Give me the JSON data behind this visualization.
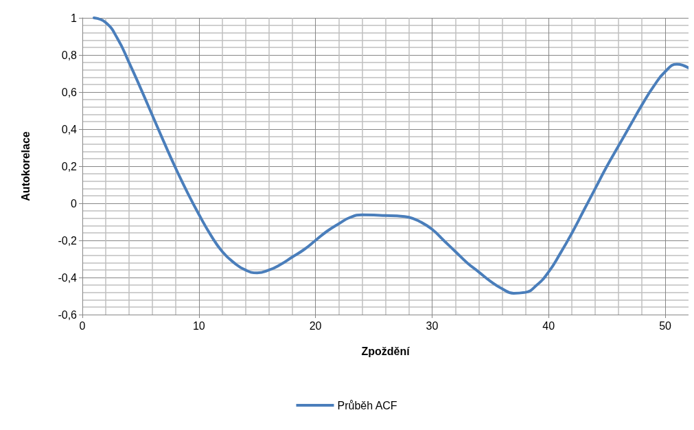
{
  "chart_data": {
    "type": "line",
    "xlabel": "Zpoždění",
    "ylabel": "Autokorelace",
    "xlim": [
      0,
      52
    ],
    "xticks": [
      0,
      10,
      20,
      30,
      40,
      50
    ],
    "ylim": [
      -0.6,
      1
    ],
    "yticks": [
      {
        "value": -0.6,
        "label": "-0,6"
      },
      {
        "value": -0.4,
        "label": "-0,4"
      },
      {
        "value": -0.2,
        "label": "-0,2"
      },
      0,
      {
        "value": 0.2,
        "label": "0,2"
      },
      {
        "value": 0.4,
        "label": "0,4"
      },
      {
        "value": 0.6,
        "label": "0,6"
      },
      {
        "value": 0.8,
        "label": "0,8"
      },
      1
    ],
    "grid": true,
    "legend": "bottom",
    "marker": "none",
    "line_style": "solid",
    "x": [
      1,
      2,
      3,
      4,
      5,
      6,
      7,
      8,
      9,
      10,
      11,
      12,
      13,
      14,
      15,
      16,
      17,
      18,
      19,
      20,
      21,
      22,
      23,
      24,
      25,
      26,
      27,
      28,
      29,
      30,
      31,
      32,
      33,
      34,
      35,
      36,
      37,
      38,
      39,
      40,
      41,
      42,
      43,
      44,
      45,
      46,
      47,
      48,
      49,
      50,
      51,
      52
    ],
    "series": [
      {
        "name": "Průběh ACF",
        "color": "#4a7ebb",
        "values": [
          1.0,
          0.975,
          0.89,
          0.76,
          0.62,
          0.475,
          0.33,
          0.19,
          0.06,
          -0.06,
          -0.17,
          -0.26,
          -0.32,
          -0.36,
          -0.375,
          -0.36,
          -0.33,
          -0.29,
          -0.25,
          -0.2,
          -0.15,
          -0.11,
          -0.075,
          -0.062,
          -0.063,
          -0.066,
          -0.068,
          -0.075,
          -0.1,
          -0.14,
          -0.2,
          -0.26,
          -0.32,
          -0.37,
          -0.42,
          -0.46,
          -0.485,
          -0.48,
          -0.44,
          -0.37,
          -0.27,
          -0.16,
          -0.04,
          0.08,
          0.2,
          0.31,
          0.42,
          0.53,
          0.63,
          0.71,
          0.75,
          0.73
        ]
      }
    ]
  }
}
